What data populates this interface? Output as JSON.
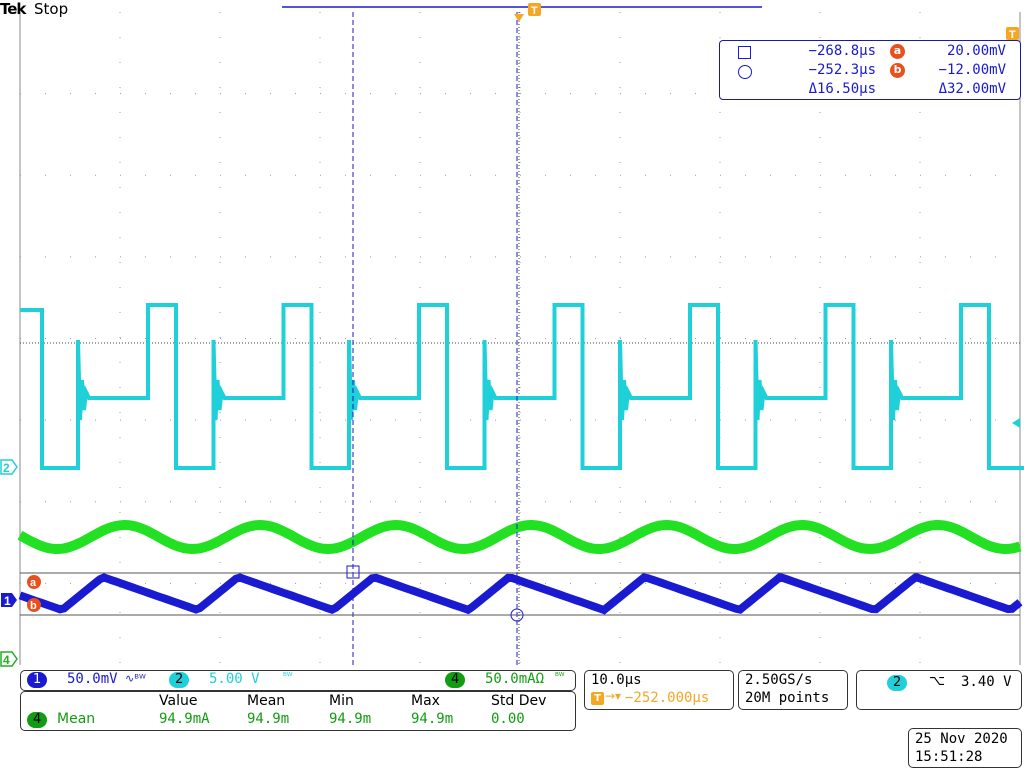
{
  "header": {
    "brand": "Tek",
    "status": "Stop"
  },
  "trigger_marker": "T",
  "cursor_readout": {
    "row1_time": "−268.8µs",
    "row1_label": "a",
    "row1_value": "20.00mV",
    "row2_time": "−252.3µs",
    "row2_label": "b",
    "row2_value": "−12.00mV",
    "delta_time": "Δ16.50µs",
    "delta_value": "Δ32.00mV"
  },
  "channel_markers": {
    "ch2": "2",
    "ch1": "1",
    "ch4": "4",
    "cursor_a": "a",
    "cursor_b": "b"
  },
  "bottom": {
    "ch1_num": "1",
    "ch1_scale": "50.0mV",
    "ch2_num": "2",
    "ch2_scale": "5.00 V",
    "ch4_num": "4",
    "ch4_scale": "50.0mAΩ",
    "timebase": "10.0µs",
    "trigger_pos": "−252.000µs",
    "sample_rate": "2.50GS/s",
    "record_length": "20M points",
    "trig_ch": "2",
    "trig_level": "3.40 V",
    "date": "25 Nov 2020",
    "time": "15:51:28"
  },
  "measurement": {
    "headers": [
      "Value",
      "Mean",
      "Min",
      "Max",
      "Std Dev"
    ],
    "ch": "4",
    "name": "Mean",
    "values": [
      "94.9mA",
      "94.9m",
      "94.9m",
      "94.9m",
      "0.00"
    ]
  },
  "colors": {
    "ch1": "#1a1ad0",
    "ch2": "#1fd0d8",
    "ch4": "#22e022",
    "cursor_marker": "#e8501e",
    "trigger": "#f5a623"
  }
}
